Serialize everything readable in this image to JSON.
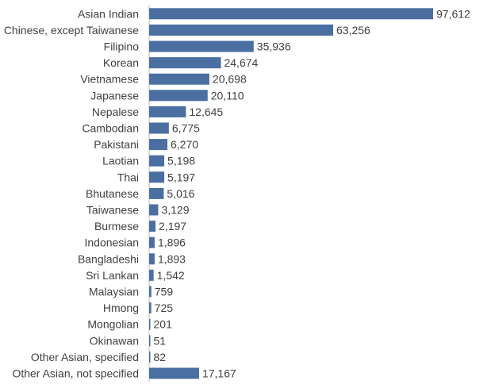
{
  "chart_data": {
    "type": "bar",
    "orientation": "horizontal",
    "title": "",
    "xlabel": "",
    "ylabel": "",
    "categories": [
      "Asian Indian",
      "Chinese, except Taiwanese",
      "Filipino",
      "Korean",
      "Vietnamese",
      "Japanese",
      "Nepalese",
      "Cambodian",
      "Pakistani",
      "Laotian",
      "Thai",
      "Bhutanese",
      "Taiwanese",
      "Burmese",
      "Indonesian",
      "Bangladeshi",
      "Sri Lankan",
      "Malaysian",
      "Hmong",
      "Mongolian",
      "Okinawan",
      "Other Asian, specified",
      "Other Asian, not specified"
    ],
    "values": [
      97612,
      63256,
      35936,
      24674,
      20698,
      20110,
      12645,
      6775,
      6270,
      5198,
      5197,
      5016,
      3129,
      2197,
      1896,
      1893,
      1542,
      759,
      725,
      201,
      51,
      82,
      17167
    ],
    "value_labels": [
      "97,612",
      "63,256",
      "35,936",
      "24,674",
      "20,698",
      "20,110",
      "12,645",
      "6,775",
      "6,270",
      "5,198",
      "5,197",
      "5,016",
      "3,129",
      "2,197",
      "1,896",
      "1,893",
      "1,542",
      "759",
      "725",
      "201",
      "51",
      "82",
      "17,167"
    ],
    "xlim": [
      0,
      97612
    ],
    "grid": false,
    "legend": "none",
    "bar_color": "#4a6fa0",
    "axis_color": "#bfbfbf",
    "text_color": "#404040"
  }
}
